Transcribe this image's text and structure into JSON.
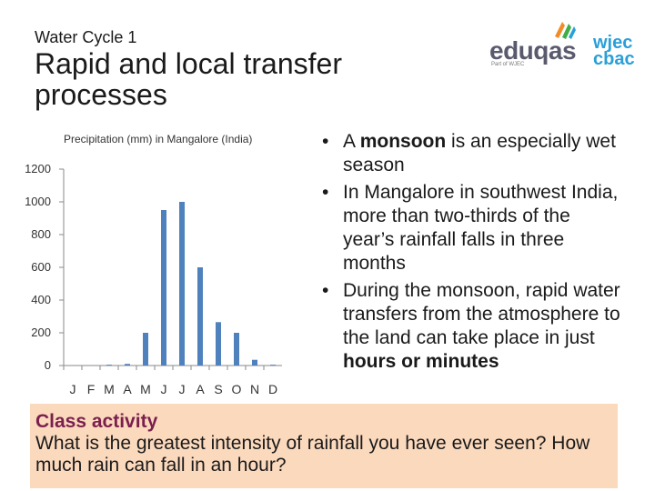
{
  "header": {
    "kicker_main": "Water Cycle",
    "kicker_num": "1",
    "title": "Rapid and local transfer processes"
  },
  "logos": {
    "eduqas": "eduqas",
    "eduqas_sub": "Part of WJEC",
    "wjec": "wjec",
    "cbac": "cbac",
    "colors": {
      "eduqas_text": "#5a5a6e",
      "wjec_text": "#2a9fd8",
      "mark_a": "#f28c28",
      "mark_b": "#3fae49",
      "mark_c": "#2a9fd8"
    }
  },
  "chart_data": {
    "type": "bar",
    "title": "Precipitation (mm) in Mangalore (India)",
    "categories": [
      "J",
      "F",
      "M",
      "A",
      "M",
      "J",
      "J",
      "A",
      "S",
      "O",
      "N",
      "D"
    ],
    "values": [
      0,
      0,
      5,
      10,
      200,
      950,
      1000,
      600,
      265,
      200,
      35,
      5
    ],
    "yticks": [
      "0",
      "200",
      "400",
      "600",
      "800",
      "1000",
      "1200"
    ],
    "ylim": [
      0,
      1200
    ],
    "grid": false,
    "bar_color": "#4f81bd"
  },
  "bullets": [
    {
      "pre": "A ",
      "bold": "monsoon",
      "post": " is an especially wet season"
    },
    {
      "pre": "In Mangalore in southwest India, more than two-thirds of the year’s rainfall falls in three months",
      "bold": "",
      "post": ""
    },
    {
      "pre": "During the monsoon, rapid water transfers from the atmosphere to the land can take place in just ",
      "bold": "hours or minutes",
      "post": ""
    }
  ],
  "activity": {
    "title": "Class activity",
    "text": "What is the greatest intensity of rainfall you have ever seen? How much rain can fall in an hour?"
  }
}
